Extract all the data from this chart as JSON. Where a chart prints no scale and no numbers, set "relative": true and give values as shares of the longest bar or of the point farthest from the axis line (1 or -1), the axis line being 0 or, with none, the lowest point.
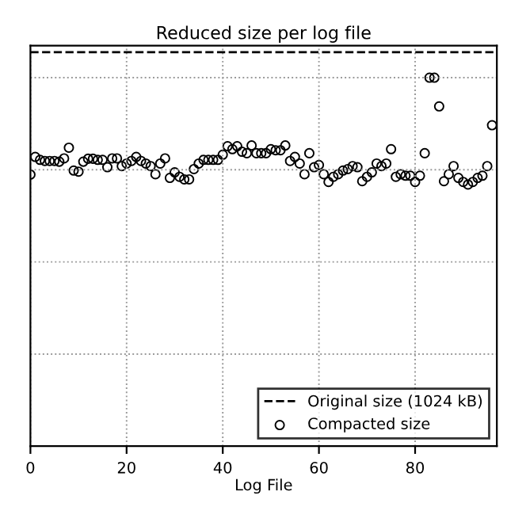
{
  "chart_data": {
    "type": "scatter",
    "title": "Reduced size per log file",
    "xlabel": "Log File",
    "relative": true,
    "xlim": [
      0,
      97
    ],
    "xticks": [
      0,
      20,
      40,
      60,
      80
    ],
    "x": [
      0,
      1,
      2,
      3,
      4,
      5,
      6,
      7,
      8,
      9,
      10,
      11,
      12,
      13,
      14,
      15,
      16,
      17,
      18,
      19,
      20,
      21,
      22,
      23,
      24,
      25,
      26,
      27,
      28,
      29,
      30,
      31,
      32,
      33,
      34,
      35,
      36,
      37,
      38,
      39,
      40,
      41,
      42,
      43,
      44,
      45,
      46,
      47,
      48,
      49,
      50,
      51,
      52,
      53,
      54,
      55,
      56,
      57,
      58,
      59,
      60,
      61,
      62,
      63,
      64,
      65,
      66,
      67,
      68,
      69,
      70,
      71,
      72,
      73,
      74,
      75,
      76,
      77,
      78,
      79,
      80,
      81,
      82,
      83,
      84,
      85,
      86,
      87,
      88,
      89,
      90,
      91,
      92,
      93,
      94,
      95,
      96
    ],
    "series": [
      {
        "name": "Compacted size",
        "color": "#000000",
        "values": [
          0.737,
          0.785,
          0.777,
          0.774,
          0.774,
          0.774,
          0.772,
          0.781,
          0.81,
          0.748,
          0.745,
          0.772,
          0.78,
          0.78,
          0.777,
          0.777,
          0.757,
          0.781,
          0.781,
          0.76,
          0.767,
          0.774,
          0.785,
          0.774,
          0.767,
          0.76,
          0.738,
          0.767,
          0.781,
          0.728,
          0.743,
          0.731,
          0.724,
          0.724,
          0.752,
          0.767,
          0.777,
          0.777,
          0.777,
          0.777,
          0.791,
          0.814,
          0.806,
          0.814,
          0.799,
          0.795,
          0.816,
          0.795,
          0.795,
          0.795,
          0.806,
          0.803,
          0.803,
          0.816,
          0.774,
          0.785,
          0.767,
          0.738,
          0.795,
          0.757,
          0.763,
          0.738,
          0.717,
          0.731,
          0.738,
          0.748,
          0.752,
          0.76,
          0.757,
          0.719,
          0.731,
          0.743,
          0.767,
          0.76,
          0.767,
          0.806,
          0.731,
          0.738,
          0.734,
          0.734,
          0.717,
          0.734,
          0.795,
          1,
          1,
          0.922,
          0.719,
          0.738,
          0.76,
          0.728,
          0.717,
          0.71,
          0.717,
          0.728,
          0.734,
          0.76,
          0.871
        ]
      }
    ],
    "ref_lines": [
      {
        "axis": "y",
        "value": 1.069,
        "label": "Original size (1024 kB)",
        "color": "#000000",
        "line_style": "dashed"
      }
    ],
    "marker": "circle",
    "grid": true,
    "legend": "bottom right"
  }
}
